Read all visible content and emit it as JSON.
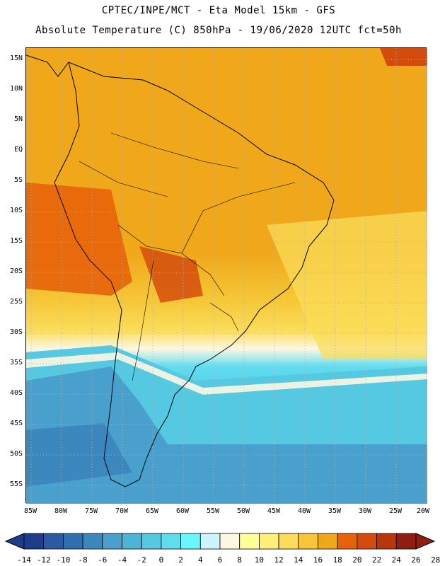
{
  "header": {
    "line1": "CPTEC/INPE/MCT -  Eta Model 15km - GFS",
    "line2": "Absolute Temperature (C) 850hPa - 19/06/2020 12UTC fct=50h"
  },
  "map": {
    "lat_ticks": [
      "15N",
      "10N",
      "5N",
      "EQ",
      "5S",
      "10S",
      "15S",
      "20S",
      "25S",
      "30S",
      "35S",
      "40S",
      "45S",
      "50S",
      "55S"
    ],
    "lon_ticks": [
      "85W",
      "80W",
      "75W",
      "70W",
      "65W",
      "60W",
      "55W",
      "50W",
      "45W",
      "40W",
      "35W",
      "30W",
      "25W",
      "20W"
    ]
  },
  "colorbar": {
    "labels": [
      "-14",
      "-12",
      "-10",
      "-8",
      "-6",
      "-4",
      "-2",
      "0",
      "2",
      "4",
      "6",
      "8",
      "10",
      "12",
      "14",
      "16",
      "18",
      "20",
      "22",
      "24",
      "26",
      "28"
    ],
    "colors": [
      "#1e3c8c",
      "#2a5aa0",
      "#3170ae",
      "#3c87be",
      "#4aa0cc",
      "#4cb4d6",
      "#55c8e2",
      "#60dcf0",
      "#6af6fe",
      "#cdf4fe",
      "#fdf7e2",
      "#fefe96",
      "#fdef7a",
      "#fbdc5a",
      "#f6c636",
      "#f0a81a",
      "#e7630a",
      "#d44c0c",
      "#b8360c",
      "#8f1d10"
    ]
  }
}
